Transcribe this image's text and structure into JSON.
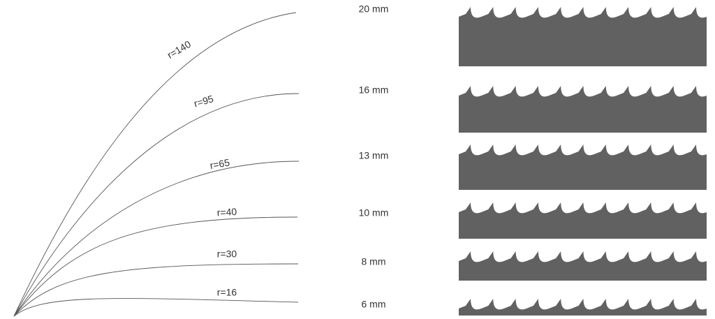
{
  "rows": [
    {
      "radius": "r=140",
      "width": "20 mm"
    },
    {
      "radius": "r=95",
      "width": "16 mm"
    },
    {
      "radius": "r=65",
      "width": "13 mm"
    },
    {
      "radius": "r=40",
      "width": "10 mm"
    },
    {
      "radius": "r=30",
      "width": "8 mm"
    },
    {
      "radius": "r=16",
      "width": "6 mm"
    }
  ]
}
